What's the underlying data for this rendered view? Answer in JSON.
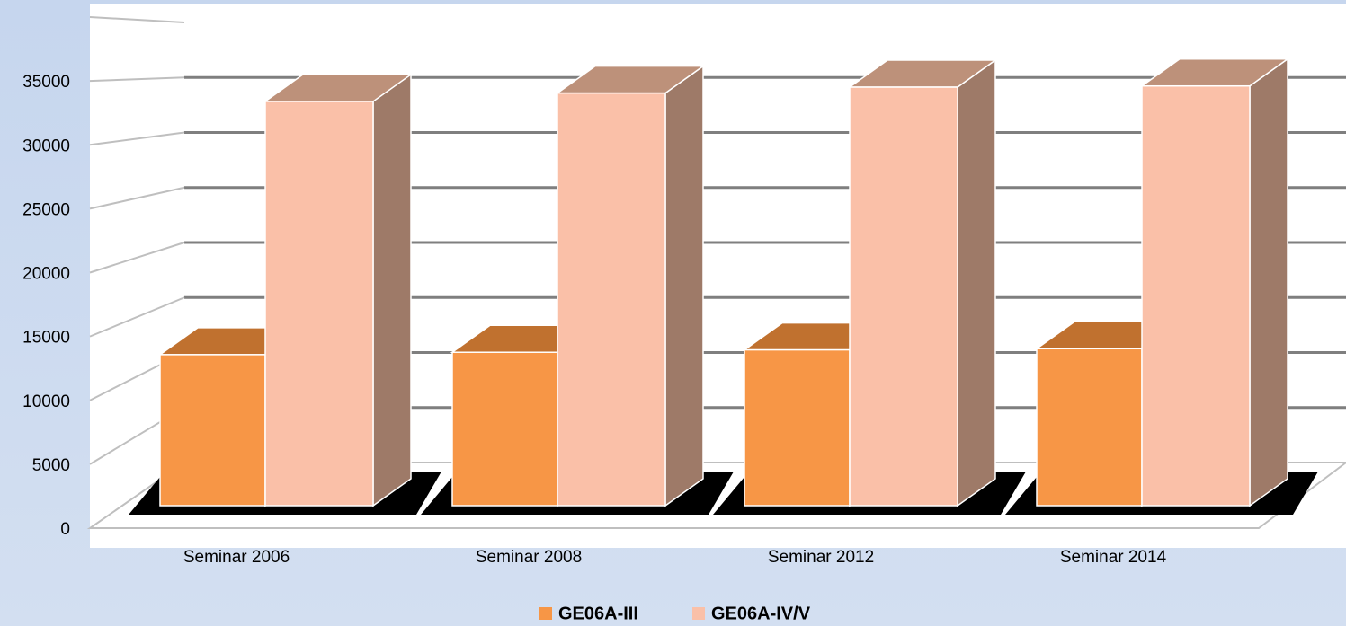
{
  "chart_data": {
    "type": "bar3d",
    "categories": [
      "Seminar 2006",
      "Seminar 2008",
      "Seminar 2012",
      "Seminar 2014"
    ],
    "series": [
      {
        "name": "GE06A-III",
        "color": "#f79646",
        "values": [
          12700,
          12900,
          13100,
          13200
        ]
      },
      {
        "name": "GE06A-IV/V",
        "color": "#fac0a8",
        "values": [
          34000,
          34700,
          35200,
          35300
        ]
      }
    ],
    "ylim": [
      0,
      40000
    ],
    "yticks": [
      0,
      5000,
      10000,
      15000,
      20000,
      25000,
      30000,
      35000
    ],
    "grid": true,
    "legend": "bottom"
  }
}
